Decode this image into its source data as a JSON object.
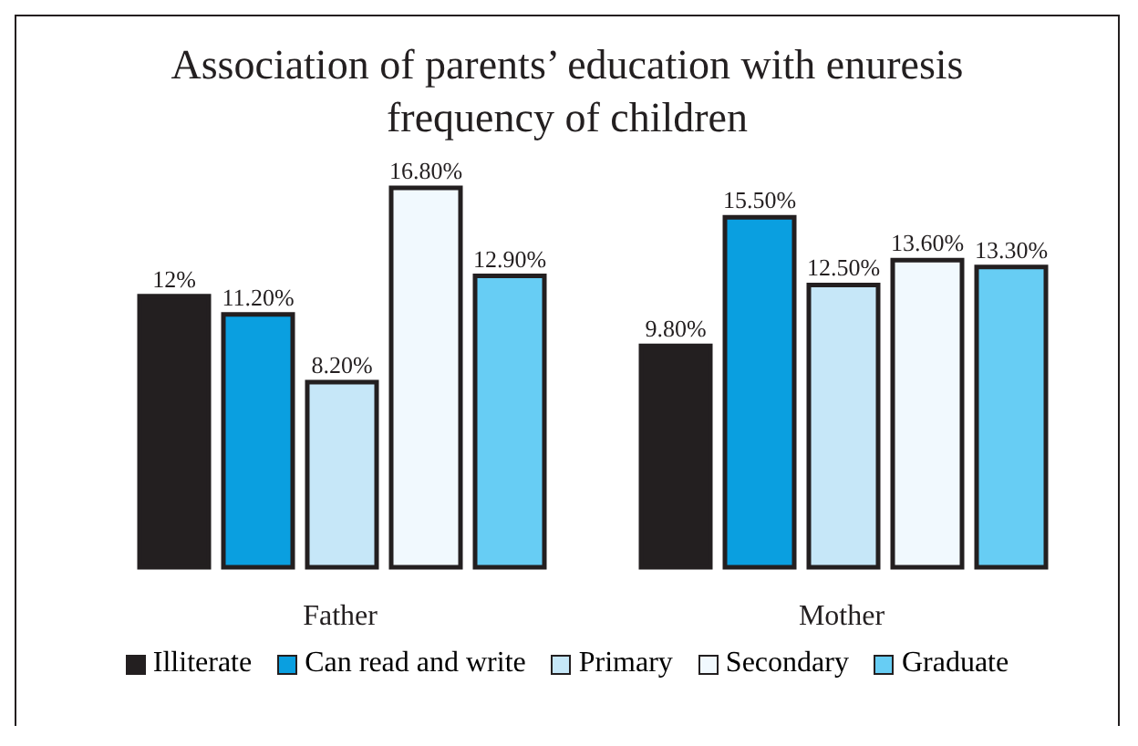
{
  "chart_data": {
    "type": "bar",
    "title": "Association of parents’ education with enuresis frequency of children",
    "categories": [
      "Father",
      "Mother"
    ],
    "legend": "bottom",
    "series": [
      {
        "name": "Illiterate",
        "color": "#231f20",
        "values": [
          12,
          9.8
        ],
        "value_labels": [
          "12%",
          "9.80%"
        ]
      },
      {
        "name": "Can read and write",
        "color": "#0a9fe0",
        "values": [
          11.2,
          15.5
        ],
        "value_labels": [
          "11.20%",
          "15.50%"
        ]
      },
      {
        "name": "Primary",
        "color": "#c6e7f8",
        "values": [
          8.2,
          12.5
        ],
        "value_labels": [
          "8.20%",
          "12.50%"
        ]
      },
      {
        "name": "Secondary",
        "color": "#f1f9fe",
        "values": [
          16.8,
          13.6
        ],
        "value_labels": [
          "16.80%",
          "13.60%"
        ]
      },
      {
        "name": "Graduate",
        "color": "#67cdf4",
        "values": [
          12.9,
          13.3
        ],
        "value_labels": [
          "12.90%",
          "13.30%"
        ]
      }
    ]
  }
}
